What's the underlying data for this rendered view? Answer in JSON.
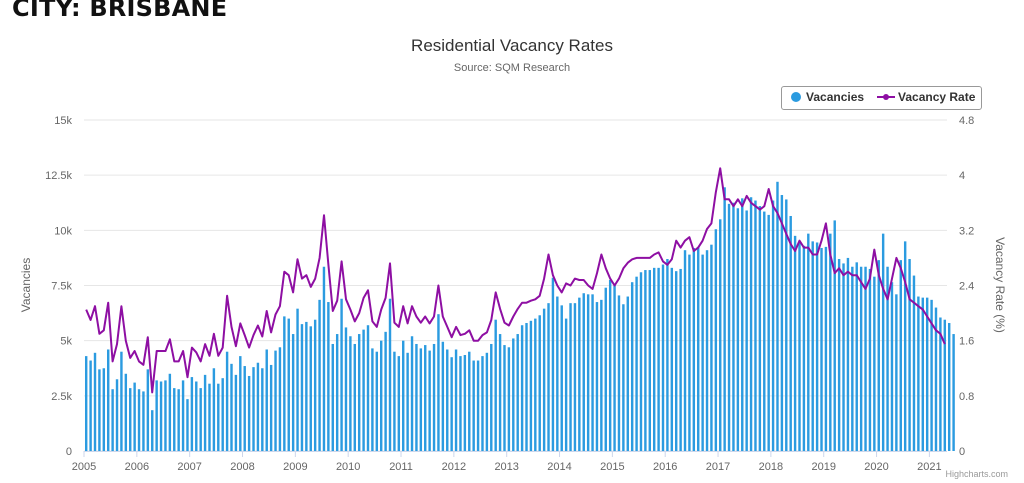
{
  "header": {
    "city_title": "CITY: BRISBANE"
  },
  "credits": "Highcharts.com",
  "chart_data": {
    "type": "bar+line",
    "title": "Residential Vacancy Rates",
    "subtitle": "Source: SQM Research",
    "ylabel_left": "Vacancies",
    "ylabel_right": "Vacancy Rate (%)",
    "ylim_left": [
      0,
      15000
    ],
    "ylim_right": [
      0,
      4.8
    ],
    "yticks_left": [
      "0",
      "2.5k",
      "5k",
      "7.5k",
      "10k",
      "12.5k",
      "15k"
    ],
    "yticks_right": [
      "0",
      "0.8",
      "1.6",
      "2.4",
      "3.2",
      "4",
      "4.8"
    ],
    "xticks": [
      "2005",
      "2006",
      "2007",
      "2008",
      "2009",
      "2010",
      "2011",
      "2012",
      "2013",
      "2014",
      "2015",
      "2016",
      "2017",
      "2018",
      "2019",
      "2020",
      "2021"
    ],
    "x_start": "2005-01",
    "x_end": "2021-04",
    "grid": true,
    "legend_position": "top-right",
    "colors": {
      "bars": "#2b9be0",
      "line": "#8e0fa3",
      "grid": "#e6e6e6",
      "axis_text": "#666666"
    },
    "series": [
      {
        "name": "Vacancies",
        "type": "column",
        "axis": "left",
        "values": [
          4300,
          4100,
          4450,
          3700,
          3750,
          4600,
          2800,
          3250,
          4500,
          3500,
          2850,
          3100,
          2800,
          2700,
          3700,
          1850,
          3200,
          3150,
          3200,
          3500,
          2850,
          2800,
          3200,
          2350,
          3350,
          3150,
          2850,
          3450,
          3050,
          3750,
          3050,
          3300,
          4500,
          3950,
          3450,
          4300,
          3850,
          3400,
          3800,
          4000,
          3750,
          4600,
          3900,
          4550,
          4700,
          6100,
          6000,
          5300,
          6450,
          5750,
          5850,
          5650,
          5950,
          6850,
          8350,
          6750,
          4850,
          5300,
          6900,
          5600,
          5200,
          4850,
          5300,
          5500,
          5700,
          4650,
          4500,
          5000,
          5400,
          6900,
          4500,
          4300,
          5000,
          4450,
          5200,
          4850,
          4650,
          4800,
          4550,
          4850,
          6200,
          4950,
          4600,
          4250,
          4600,
          4300,
          4350,
          4500,
          4100,
          4100,
          4300,
          4450,
          4850,
          5950,
          5300,
          4800,
          4700,
          5100,
          5300,
          5700,
          5800,
          5900,
          6000,
          6150,
          6450,
          6700,
          7850,
          7000,
          6600,
          6000,
          6700,
          6700,
          6950,
          7150,
          7100,
          7100,
          6750,
          6850,
          7400,
          7750,
          7500,
          7050,
          6650,
          7000,
          7650,
          7900,
          8100,
          8200,
          8200,
          8300,
          8300,
          8450,
          8700,
          8300,
          8150,
          8250,
          9100,
          8900,
          9200,
          9250,
          8900,
          9100,
          9350,
          10050,
          10500,
          11950,
          11200,
          11250,
          11000,
          11450,
          10900,
          11500,
          11350,
          11100,
          10850,
          10700,
          11350,
          12200,
          11600,
          11400,
          10650,
          9750,
          9450,
          9300,
          9850,
          9500,
          9450,
          9200,
          9250,
          9850,
          10450,
          8700,
          8500,
          8750,
          8350,
          8550,
          8350,
          8350,
          8250,
          7900,
          8650,
          9850,
          8350,
          7650,
          7100,
          8650,
          9500,
          8700,
          7950,
          7000,
          6950,
          6950,
          6850,
          6500,
          6050,
          5950,
          5800,
          5300
        ]
      },
      {
        "name": "Vacancy Rate",
        "type": "line",
        "axis": "right",
        "values": [
          2.05,
          1.9,
          2.1,
          1.7,
          1.75,
          2.15,
          1.3,
          1.55,
          2.1,
          1.6,
          1.35,
          1.45,
          1.3,
          1.25,
          1.65,
          0.85,
          1.45,
          1.45,
          1.45,
          1.62,
          1.3,
          1.3,
          1.45,
          1.07,
          1.5,
          1.43,
          1.3,
          1.55,
          1.38,
          1.7,
          1.38,
          1.5,
          2.25,
          1.8,
          1.52,
          1.85,
          1.68,
          1.5,
          1.68,
          1.82,
          1.66,
          2.03,
          1.72,
          1.98,
          2.1,
          2.6,
          2.55,
          2.3,
          2.78,
          2.5,
          2.55,
          2.38,
          2.5,
          2.8,
          3.42,
          2.7,
          2.03,
          2.18,
          2.75,
          2.2,
          2.05,
          1.88,
          2.0,
          2.22,
          2.33,
          1.88,
          1.8,
          2.05,
          2.22,
          2.72,
          1.86,
          1.8,
          2.1,
          1.85,
          2.1,
          1.95,
          1.86,
          1.95,
          1.85,
          1.95,
          2.4,
          1.95,
          1.8,
          1.65,
          1.8,
          1.68,
          1.7,
          1.75,
          1.6,
          1.6,
          1.68,
          1.72,
          1.9,
          2.3,
          2.06,
          1.86,
          1.82,
          1.95,
          2.06,
          2.15,
          2.15,
          2.18,
          2.2,
          2.25,
          2.5,
          2.85,
          2.55,
          2.4,
          2.3,
          2.43,
          2.4,
          2.5,
          2.48,
          2.48,
          2.4,
          2.35,
          2.58,
          2.85,
          2.65,
          2.5,
          2.4,
          2.5,
          2.65,
          2.73,
          2.78,
          2.8,
          2.8,
          2.8,
          2.8,
          2.85,
          2.88,
          2.75,
          2.7,
          2.78,
          3.05,
          2.95,
          3.05,
          3.1,
          2.9,
          2.95,
          3.05,
          3.22,
          3.3,
          3.75,
          4.1,
          3.65,
          3.65,
          3.55,
          3.65,
          3.55,
          3.7,
          3.6,
          3.55,
          3.5,
          3.55,
          3.8,
          3.55,
          3.45,
          3.3,
          3.15,
          3.0,
          2.9,
          3.05,
          2.95,
          2.95,
          2.85,
          2.85,
          3.05,
          3.3,
          2.85,
          2.58,
          2.65,
          2.55,
          2.6,
          2.55,
          2.55,
          2.45,
          2.35,
          2.5,
          2.92,
          2.55,
          2.35,
          2.2,
          2.5,
          2.8,
          2.65,
          2.45,
          2.2,
          2.15,
          2.1,
          2.05,
          1.95,
          1.85,
          1.75,
          1.7,
          1.55
        ]
      }
    ]
  }
}
